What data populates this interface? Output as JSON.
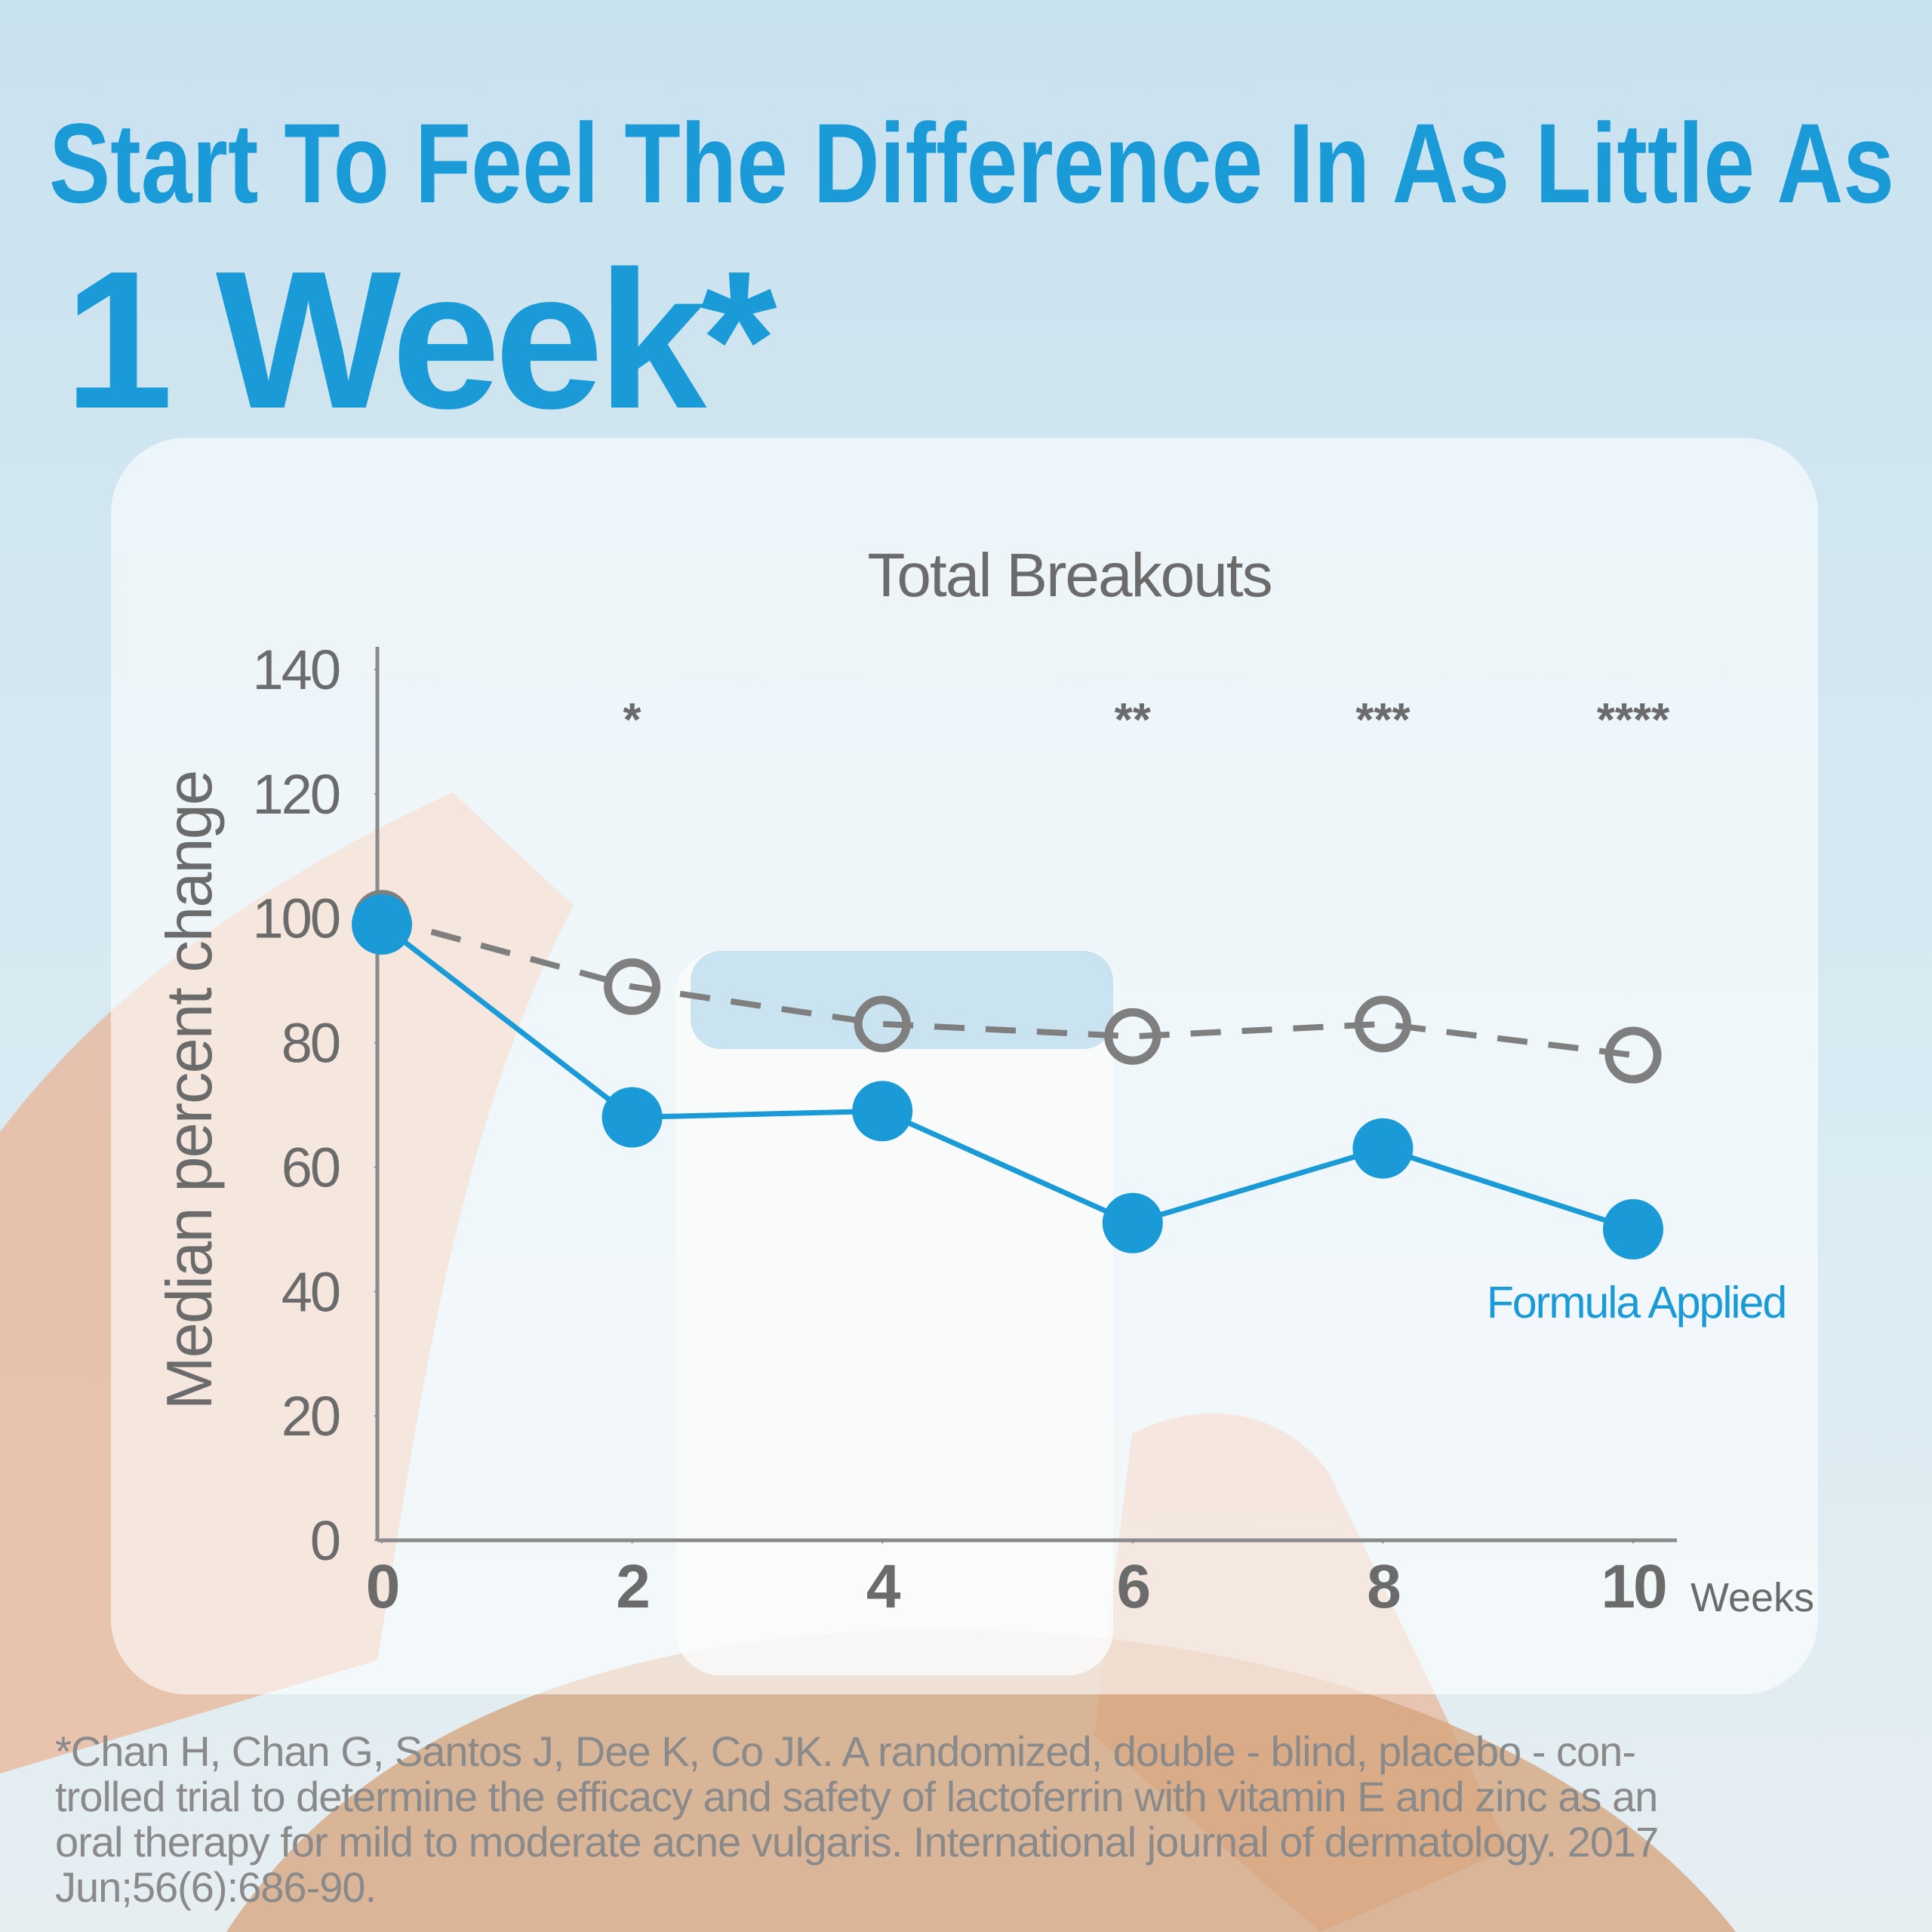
{
  "headline": [
    "Start To Feel The Difference In  As Little As",
    "1 Week*"
  ],
  "chart_data": {
    "type": "line",
    "title": "Total Breakouts",
    "y_label": "Median percent change",
    "x_label": "Weeks",
    "x": [
      0,
      2,
      4,
      6,
      8,
      10
    ],
    "series": [
      {
        "name": "Formula Applied",
        "color": "#1a9ad6",
        "style": "solid",
        "values": [
          99,
          68,
          69,
          51,
          63,
          50
        ]
      },
      {
        "color": "#7f7f7f",
        "style": "dashed",
        "values": [
          100,
          89,
          83,
          81,
          83,
          78
        ]
      }
    ],
    "annotations": [
      {
        "x": 2,
        "text": "*"
      },
      {
        "x": 6,
        "text": "**"
      },
      {
        "x": 8,
        "text": "***"
      },
      {
        "x": 10,
        "text": "****"
      }
    ],
    "xlim": [
      0,
      10
    ],
    "xticks": [
      0,
      2,
      4,
      6,
      8,
      10
    ],
    "ylim": [
      0,
      140
    ],
    "yticks": [
      0,
      20,
      40,
      60,
      80,
      100,
      120,
      140
    ],
    "grid": false
  },
  "footnote": [
    "*Chan H, Chan G, Santos J, Dee K, Co JK. A randomized, double - blind, placebo - con-",
    "trolled trial to determine the efficacy and safety of lactoferrin with vitamin E and zinc as an",
    "oral therapy for mild to moderate acne vulgaris. International journal of dermatology. 2017",
    "Jun;56(6):686-90."
  ]
}
